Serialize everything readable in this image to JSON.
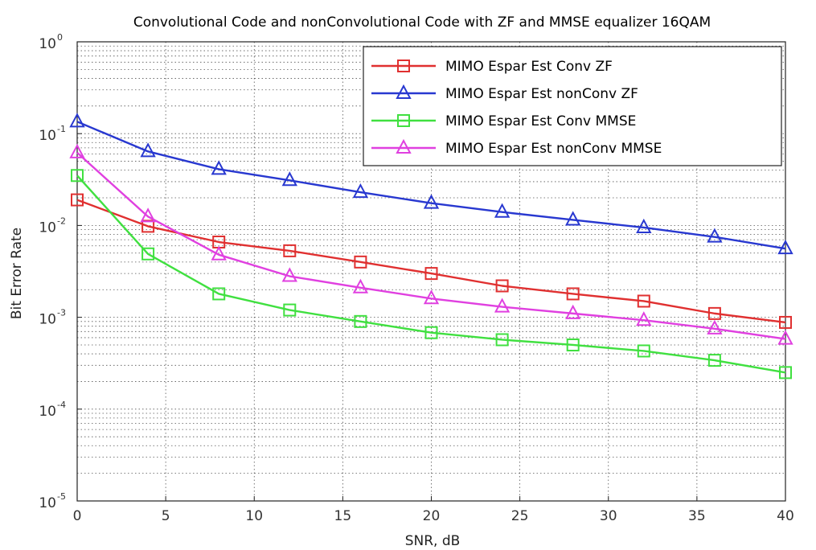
{
  "chart_data": {
    "type": "line",
    "title": "Convolutional Code and nonConvolutional Code with ZF and MMSE equalizer 16QAM",
    "xlabel": "SNR, dB",
    "ylabel": "Bit Error Rate",
    "xlim": [
      0,
      40
    ],
    "ylim": [
      1e-05,
      1
    ],
    "yscale": "log",
    "grid": true,
    "legend_position": "top-right",
    "x_ticks": [
      "0",
      "5",
      "10",
      "15",
      "20",
      "25",
      "30",
      "35",
      "40"
    ],
    "y_tick_exponents": [
      "0",
      "-1",
      "-2",
      "-3",
      "-4",
      "-5"
    ],
    "y_tick_base": "10",
    "x": [
      0,
      4,
      8,
      12,
      16,
      20,
      24,
      28,
      32,
      36,
      40
    ],
    "series": [
      {
        "name": "MIMO Espar Est Conv ZF",
        "color": "#e03030",
        "marker": "square",
        "values": [
          0.019,
          0.0098,
          0.0066,
          0.0053,
          0.004,
          0.003,
          0.0022,
          0.0018,
          0.0015,
          0.0011,
          0.00088
        ]
      },
      {
        "name": "MIMO Espar Est nonConv ZF",
        "color": "#2838d0",
        "marker": "triangle",
        "values": [
          0.135,
          0.064,
          0.041,
          0.031,
          0.023,
          0.0175,
          0.014,
          0.0115,
          0.0095,
          0.0075,
          0.0056
        ]
      },
      {
        "name": "MIMO Espar Est Conv MMSE",
        "color": "#40e040",
        "marker": "square",
        "values": [
          0.035,
          0.0049,
          0.0018,
          0.0012,
          0.0009,
          0.00068,
          0.00057,
          0.0005,
          0.00043,
          0.00034,
          0.00025
        ]
      },
      {
        "name": "MIMO Espar Est nonConv MMSE",
        "color": "#e040e0",
        "marker": "triangle",
        "values": [
          0.062,
          0.0125,
          0.0048,
          0.0028,
          0.0021,
          0.0016,
          0.0013,
          0.0011,
          0.00093,
          0.00075,
          0.00058
        ]
      }
    ]
  }
}
